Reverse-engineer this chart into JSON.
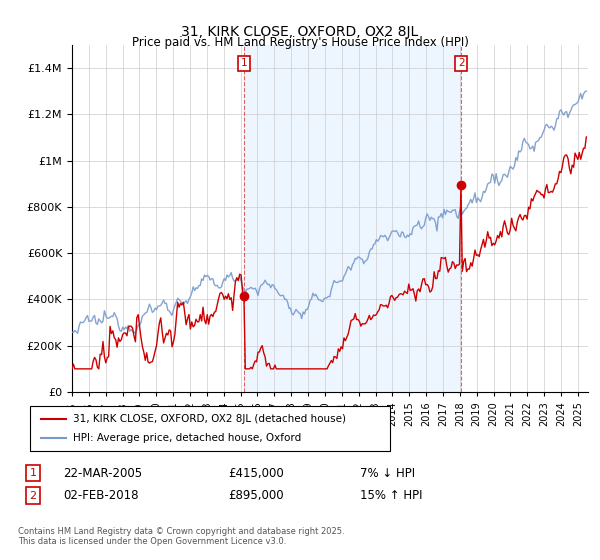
{
  "title": "31, KIRK CLOSE, OXFORD, OX2 8JL",
  "subtitle": "Price paid vs. HM Land Registry's House Price Index (HPI)",
  "ylim": [
    0,
    1500000
  ],
  "yticks": [
    0,
    200000,
    400000,
    600000,
    800000,
    1000000,
    1200000,
    1400000
  ],
  "x_start_year": 1995,
  "x_end_year": 2025,
  "legend_entry1": "31, KIRK CLOSE, OXFORD, OX2 8JL (detached house)",
  "legend_entry2": "HPI: Average price, detached house, Oxford",
  "annotation1_label": "1",
  "annotation1_date": "22-MAR-2005",
  "annotation1_price": "£415,000",
  "annotation1_hpi": "7% ↓ HPI",
  "annotation2_label": "2",
  "annotation2_date": "02-FEB-2018",
  "annotation2_price": "£895,000",
  "annotation2_hpi": "15% ↑ HPI",
  "sale1_year": 2005.22,
  "sale1_price": 415000,
  "sale2_year": 2018.09,
  "sale2_price": 895000,
  "footnote": "Contains HM Land Registry data © Crown copyright and database right 2025.\nThis data is licensed under the Open Government Licence v3.0.",
  "line1_color": "#cc0000",
  "line2_color": "#7799cc",
  "vline_color": "#cc0000",
  "annotation_box_color": "#cc0000",
  "shade_color": "#ddeeff",
  "background_color": "#ffffff",
  "grid_color": "#cccccc"
}
